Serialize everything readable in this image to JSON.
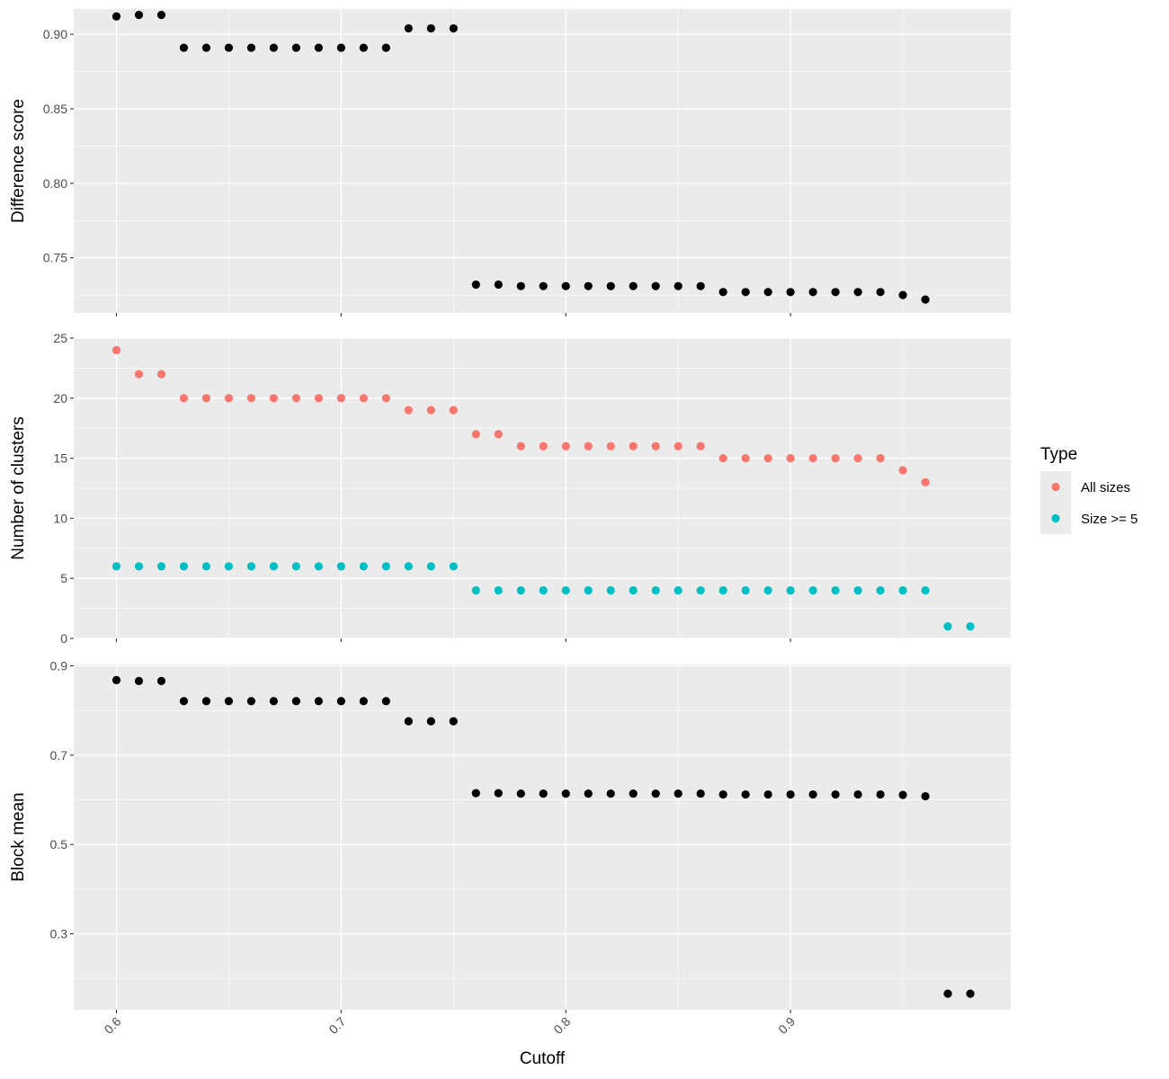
{
  "chart_data": {
    "type": "scatter",
    "xlabel": "Cutoff",
    "x_ticks": [
      0.6,
      0.7,
      0.8,
      0.9
    ],
    "x_tick_labels": [
      "0.6",
      "0.7",
      "0.8",
      "0.9"
    ],
    "xlim": [
      0.581,
      0.998
    ],
    "x": [
      0.6,
      0.61,
      0.62,
      0.63,
      0.64,
      0.65,
      0.66,
      0.67,
      0.68,
      0.69,
      0.7,
      0.71,
      0.72,
      0.73,
      0.74,
      0.75,
      0.76,
      0.77,
      0.78,
      0.79,
      0.8,
      0.81,
      0.82,
      0.83,
      0.84,
      0.85,
      0.86,
      0.87,
      0.88,
      0.89,
      0.9,
      0.91,
      0.92,
      0.93,
      0.94,
      0.95,
      0.96,
      0.97,
      0.98
    ],
    "grid": true,
    "background": "#ebebeb",
    "legend": {
      "title": "Type",
      "placement": "right",
      "entries": [
        {
          "label": "All sizes",
          "color": "#f8766d"
        },
        {
          "label": "Size >= 5",
          "color": "#00bfc4"
        }
      ]
    },
    "panels": [
      {
        "ylabel": "Difference score",
        "ylim": [
          0.713,
          0.917
        ],
        "y_ticks": [
          0.75,
          0.8,
          0.85,
          0.9
        ],
        "y_tick_labels": [
          "0.75",
          "0.80",
          "0.85",
          "0.90"
        ],
        "series": [
          {
            "color": "#000000",
            "values": [
              0.912,
              0.913,
              0.913,
              0.891,
              0.891,
              0.891,
              0.891,
              0.891,
              0.891,
              0.891,
              0.891,
              0.891,
              0.891,
              0.904,
              0.904,
              0.904,
              0.732,
              0.732,
              0.731,
              0.731,
              0.731,
              0.731,
              0.731,
              0.731,
              0.731,
              0.731,
              0.731,
              0.727,
              0.727,
              0.727,
              0.727,
              0.727,
              0.727,
              0.727,
              0.727,
              0.725,
              0.722,
              null,
              null
            ]
          }
        ]
      },
      {
        "ylabel": "Number of clusters",
        "ylim": [
          0,
          25
        ],
        "y_ticks": [
          0,
          5,
          10,
          15,
          20,
          25
        ],
        "y_tick_labels": [
          "0",
          "5",
          "10",
          "15",
          "20",
          "25"
        ],
        "series": [
          {
            "name": "All sizes",
            "color": "#f8766d",
            "values": [
              24,
              22,
              22,
              20,
              20,
              20,
              20,
              20,
              20,
              20,
              20,
              20,
              20,
              19,
              19,
              19,
              17,
              17,
              16,
              16,
              16,
              16,
              16,
              16,
              16,
              16,
              16,
              15,
              15,
              15,
              15,
              15,
              15,
              15,
              15,
              14,
              13,
              null,
              null
            ]
          },
          {
            "name": "Size >= 5",
            "color": "#00bfc4",
            "values": [
              6,
              6,
              6,
              6,
              6,
              6,
              6,
              6,
              6,
              6,
              6,
              6,
              6,
              6,
              6,
              6,
              4,
              4,
              4,
              4,
              4,
              4,
              4,
              4,
              4,
              4,
              4,
              4,
              4,
              4,
              4,
              4,
              4,
              4,
              4,
              4,
              4,
              1,
              1
            ]
          }
        ]
      },
      {
        "ylabel": "Block mean",
        "ylim": [
          0.13,
          0.903
        ],
        "y_ticks": [
          0.3,
          0.5,
          0.7,
          0.9
        ],
        "y_tick_labels": [
          "0.3",
          "0.5",
          "0.7",
          "0.9"
        ],
        "series": [
          {
            "color": "#000000",
            "values": [
              0.868,
              0.866,
              0.866,
              0.821,
              0.821,
              0.821,
              0.821,
              0.821,
              0.821,
              0.821,
              0.821,
              0.821,
              0.821,
              0.776,
              0.776,
              0.776,
              0.615,
              0.615,
              0.614,
              0.614,
              0.614,
              0.614,
              0.614,
              0.614,
              0.614,
              0.614,
              0.614,
              0.612,
              0.612,
              0.612,
              0.612,
              0.612,
              0.612,
              0.612,
              0.612,
              0.611,
              0.608,
              0.166,
              0.166
            ]
          }
        ]
      }
    ]
  }
}
